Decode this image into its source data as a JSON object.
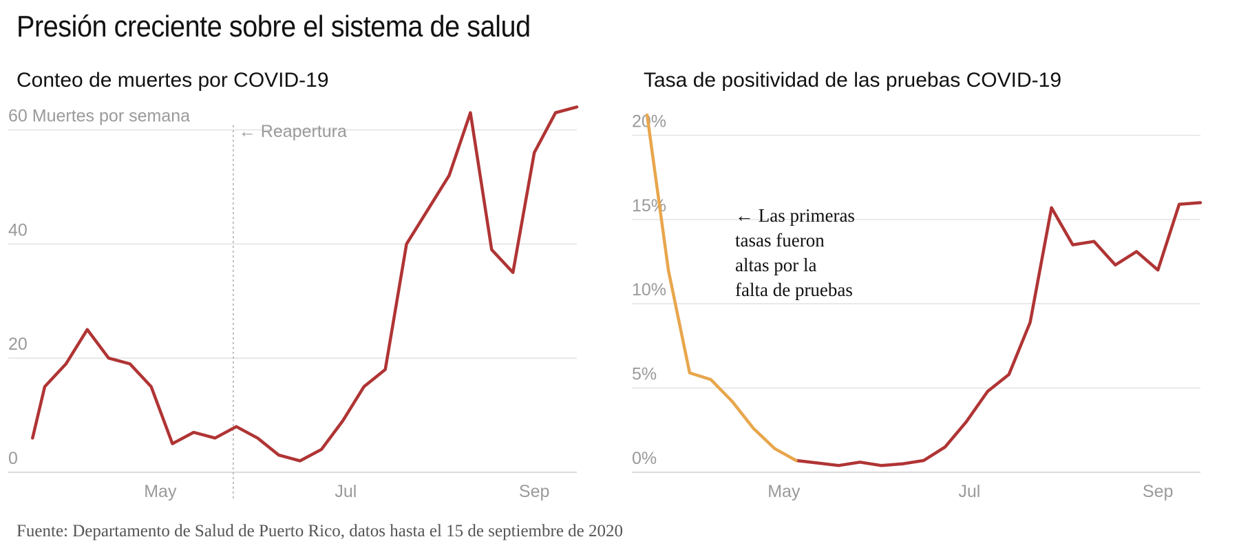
{
  "title": "Presión creciente sobre el sistema de salud",
  "source": "Fuente: Departamento de Salud de Puerto Rico, datos hasta el 15 de septiembre de 2020",
  "colors": {
    "line": "#b03434",
    "early": "#e8a64c",
    "grid": "#e2e2e2",
    "axis_text": "#9a9a9a"
  },
  "chart_data": [
    {
      "type": "line",
      "title": "Conteo de muertes por COVID-19",
      "ylabel": "Muertes por semana",
      "ylim": [
        0,
        62
      ],
      "yticks": [
        0,
        20,
        40,
        60
      ],
      "ytick_labels": [
        "0",
        "20",
        "40",
        "60 Muertes por semana"
      ],
      "xticks": [
        {
          "date": "2020-05-01",
          "label": "May"
        },
        {
          "date": "2020-07-01",
          "label": "Jul"
        },
        {
          "date": "2020-09-01",
          "label": "Sep"
        }
      ],
      "x_range": [
        "2020-03-12",
        "2020-09-15"
      ],
      "annotation": {
        "date": "2020-05-25",
        "label": "← Reapertura"
      },
      "series": [
        {
          "x": [
            "2020-03-20",
            "2020-03-24",
            "2020-03-31",
            "2020-04-07",
            "2020-04-14",
            "2020-04-21",
            "2020-04-28",
            "2020-05-05",
            "2020-05-12",
            "2020-05-19",
            "2020-05-26",
            "2020-06-02",
            "2020-06-09",
            "2020-06-16",
            "2020-06-23",
            "2020-06-30",
            "2020-07-07",
            "2020-07-14",
            "2020-07-21",
            "2020-07-28",
            "2020-08-04",
            "2020-08-11",
            "2020-08-18",
            "2020-08-25",
            "2020-09-01",
            "2020-09-08",
            "2020-09-15"
          ],
          "y": [
            6,
            15,
            19,
            25,
            20,
            19,
            15,
            5,
            7,
            6,
            8,
            6,
            3,
            2,
            4,
            9,
            15,
            18,
            40,
            46,
            52,
            63,
            39,
            35,
            56,
            63,
            64
          ]
        }
      ]
    },
    {
      "type": "line",
      "title": "Tasa de positividad de las pruebas COVID-19",
      "ylim": [
        0,
        21
      ],
      "yticks": [
        0,
        5,
        10,
        15,
        20
      ],
      "ytick_labels": [
        "0%",
        "5%",
        "10%",
        "15%",
        "20%"
      ],
      "xticks": [
        {
          "date": "2020-05-01",
          "label": "May"
        },
        {
          "date": "2020-07-01",
          "label": "Jul"
        },
        {
          "date": "2020-09-01",
          "label": "Sep"
        }
      ],
      "x_range": [
        "2020-03-12",
        "2020-09-15"
      ],
      "annotation": {
        "lines": [
          "← Las primeras",
          "tasas fueron",
          "altas por la",
          "falta de pruebas"
        ]
      },
      "series": [
        {
          "x": [
            "2020-03-17",
            "2020-03-24",
            "2020-03-31",
            "2020-04-07",
            "2020-04-14",
            "2020-04-21",
            "2020-04-28",
            "2020-05-05",
            "2020-05-12",
            "2020-05-19",
            "2020-05-26",
            "2020-06-02",
            "2020-06-09",
            "2020-06-16",
            "2020-06-23",
            "2020-06-30",
            "2020-07-07",
            "2020-07-14",
            "2020-07-21",
            "2020-07-28",
            "2020-08-04",
            "2020-08-11",
            "2020-08-18",
            "2020-08-25",
            "2020-09-01",
            "2020-09-08",
            "2020-09-15"
          ],
          "y": [
            21.2,
            12.0,
            5.9,
            5.5,
            4.2,
            2.6,
            1.4,
            0.7,
            0.55,
            0.4,
            0.6,
            0.4,
            0.5,
            0.7,
            1.5,
            3.0,
            4.8,
            5.8,
            8.9,
            15.7,
            13.5,
            13.7,
            12.3,
            13.1,
            12.0,
            15.9,
            16.0
          ],
          "early_segment_end_index": 7
        }
      ]
    }
  ]
}
